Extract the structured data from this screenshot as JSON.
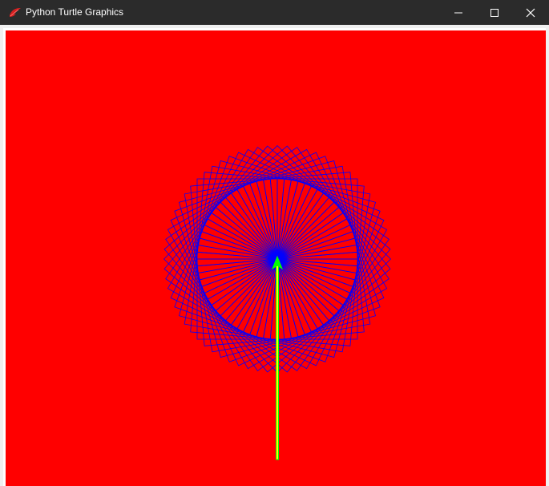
{
  "window": {
    "title": "Python Turtle Graphics",
    "app_icon": "tk-feather-icon",
    "controls": [
      "minimize-icon",
      "maximize-icon",
      "close-icon"
    ]
  },
  "canvas": {
    "background_color": "#ff0000",
    "drawing": {
      "pen_color": "#0000ff",
      "pattern": "spirograph of rotated squares around a central point",
      "square_count": 72,
      "rotation_step_deg": 5
    },
    "turtle": {
      "shape": "arrow",
      "fill_color": "#00ff00",
      "trail_outline_color": "#00ff00",
      "trail_fill_color": "#ffff00",
      "heading": "up"
    }
  }
}
